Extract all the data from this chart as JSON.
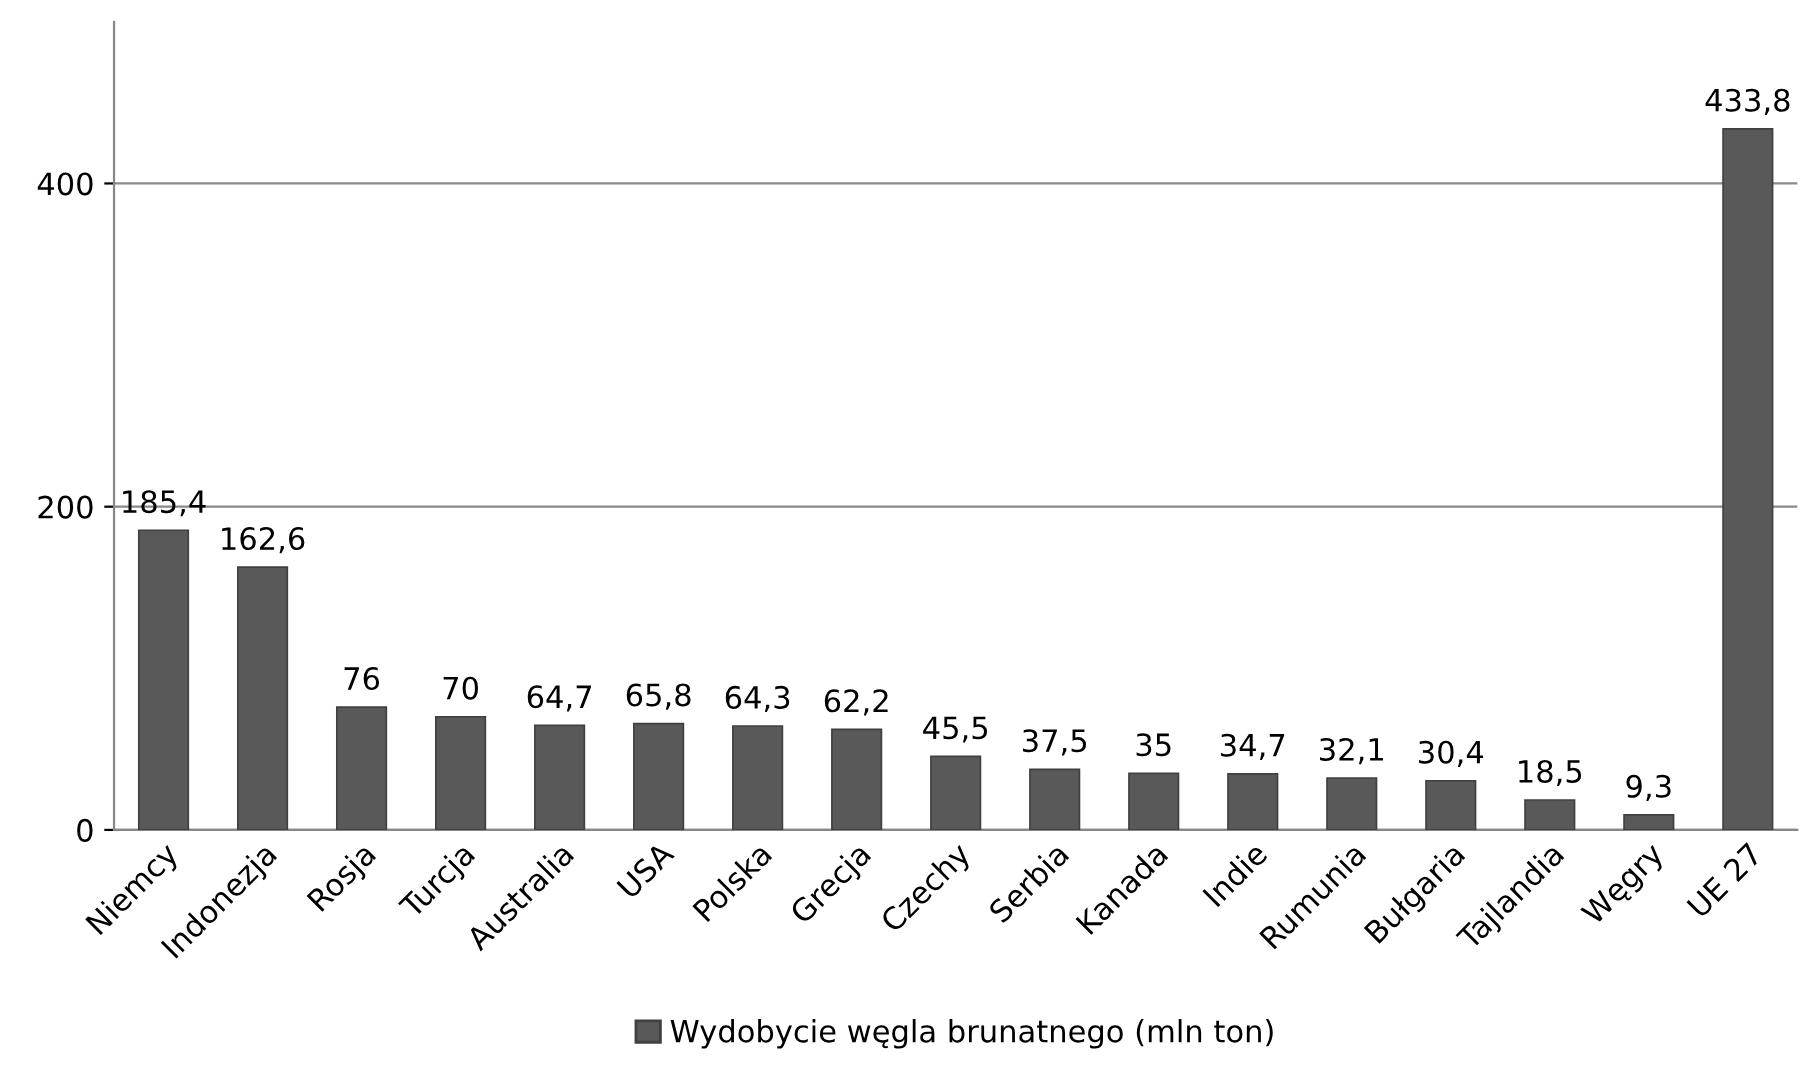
{
  "chart_data": {
    "type": "bar",
    "categories": [
      "Niemcy",
      "Indonezja",
      "Rosja",
      "Turcja",
      "Australia",
      "USA",
      "Polska",
      "Grecja",
      "Czechy",
      "Serbia",
      "Kanada",
      "Indie",
      "Rumunia",
      "Bułgaria",
      "Tajlandia",
      "Węgry",
      "UE 27"
    ],
    "series": [
      {
        "name": "Wydobycie węgla brunatnego (mln ton)",
        "color": "#595959",
        "values": [
          185.4,
          162.6,
          76,
          70,
          64.7,
          65.8,
          64.3,
          62.2,
          45.5,
          37.5,
          35,
          34.7,
          32.1,
          30.4,
          18.5,
          9.3,
          433.8
        ],
        "value_labels": [
          "185,4",
          "162,6",
          "76",
          "70",
          "64,7",
          "65,8",
          "64,3",
          "62,2",
          "45,5",
          "37,5",
          "35",
          "34,7",
          "32,1",
          "30,4",
          "18,5",
          "9,3",
          "433,8"
        ]
      }
    ],
    "ylim": [
      0,
      500
    ],
    "yticks": [
      0,
      200,
      400
    ],
    "grid": "y",
    "legend": "bottom"
  }
}
